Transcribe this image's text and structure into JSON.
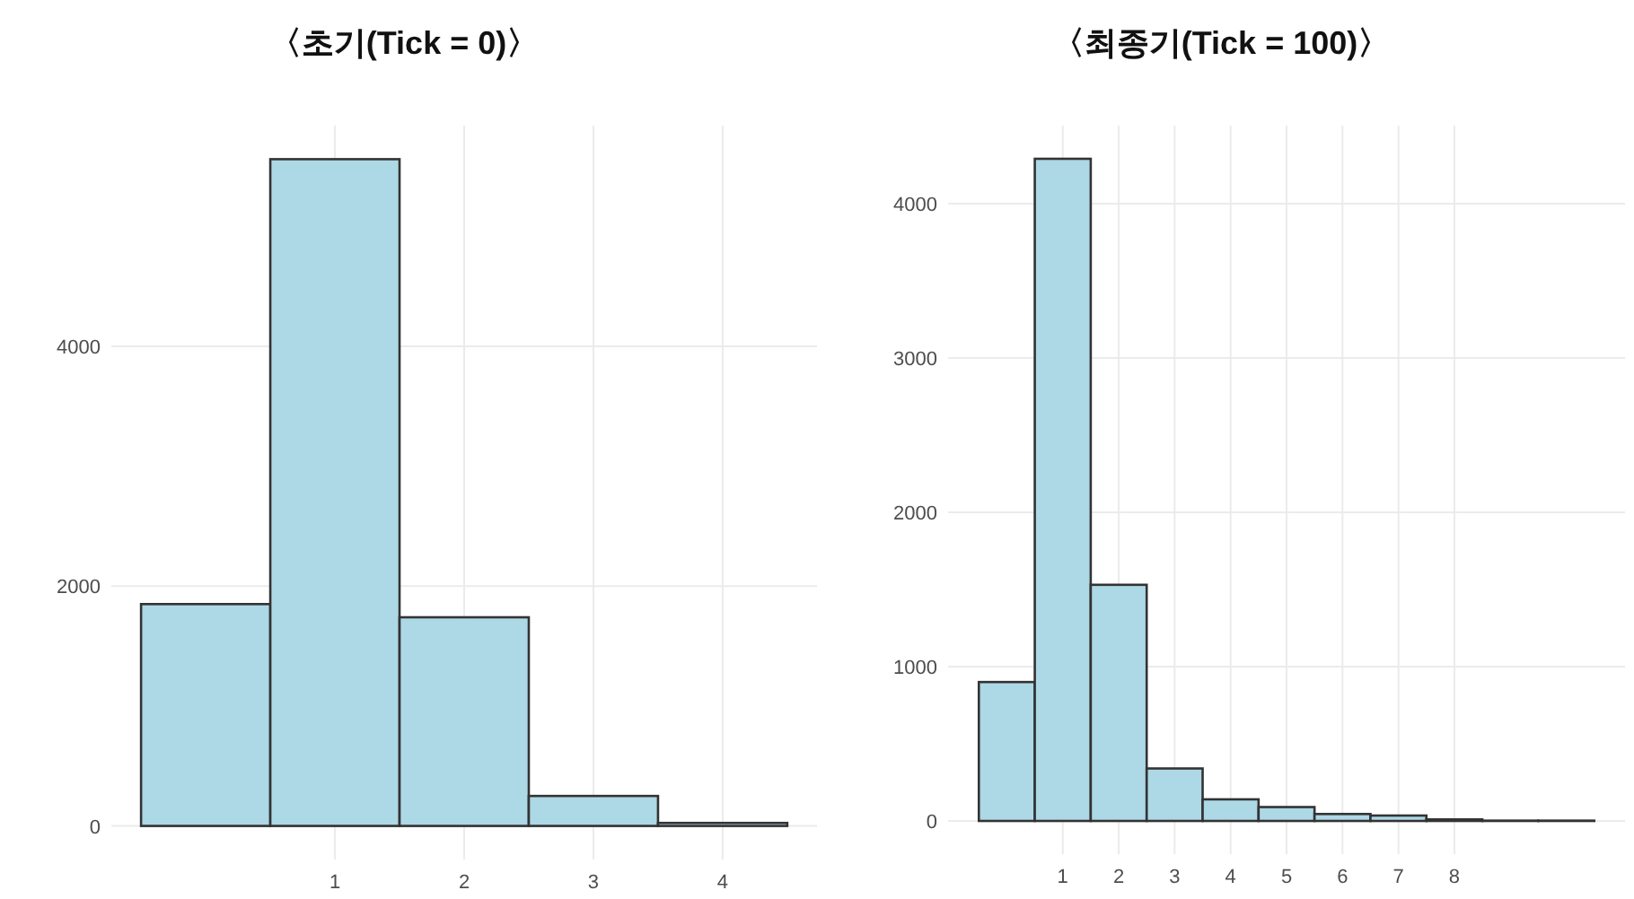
{
  "chart_data": [
    {
      "type": "histogram",
      "title": "〈초기(Tick = 0)〉",
      "bins": [
        -0.5,
        0.5,
        1.5,
        2.5,
        3.5,
        4.5
      ],
      "values": [
        1850,
        5560,
        1740,
        250,
        25
      ],
      "color": "#add8e6",
      "xlim": [
        -0.73,
        4.73
      ],
      "ylim": [
        -280,
        5840
      ],
      "xticks": [
        1,
        2,
        3,
        4
      ],
      "yticks": [
        0,
        2000,
        4000
      ],
      "grid": true
    },
    {
      "type": "histogram",
      "title": "〈최종기(Tick = 100)〉",
      "bins": [
        -0.5,
        0.5,
        1.5,
        2.5,
        3.5,
        4.5,
        5.5,
        6.5,
        7.5,
        8.5,
        9.5,
        10.5
      ],
      "values": [
        900,
        4290,
        1530,
        340,
        140,
        90,
        45,
        35,
        10,
        2,
        2
      ],
      "color": "#add8e6",
      "xlim": [
        -1.05,
        11.05
      ],
      "ylim": [
        -215,
        4505
      ],
      "xticks": [
        1,
        2,
        3,
        4,
        5,
        6,
        7,
        8
      ],
      "yticks": [
        0,
        1000,
        2000,
        3000,
        4000
      ],
      "grid": true
    }
  ]
}
